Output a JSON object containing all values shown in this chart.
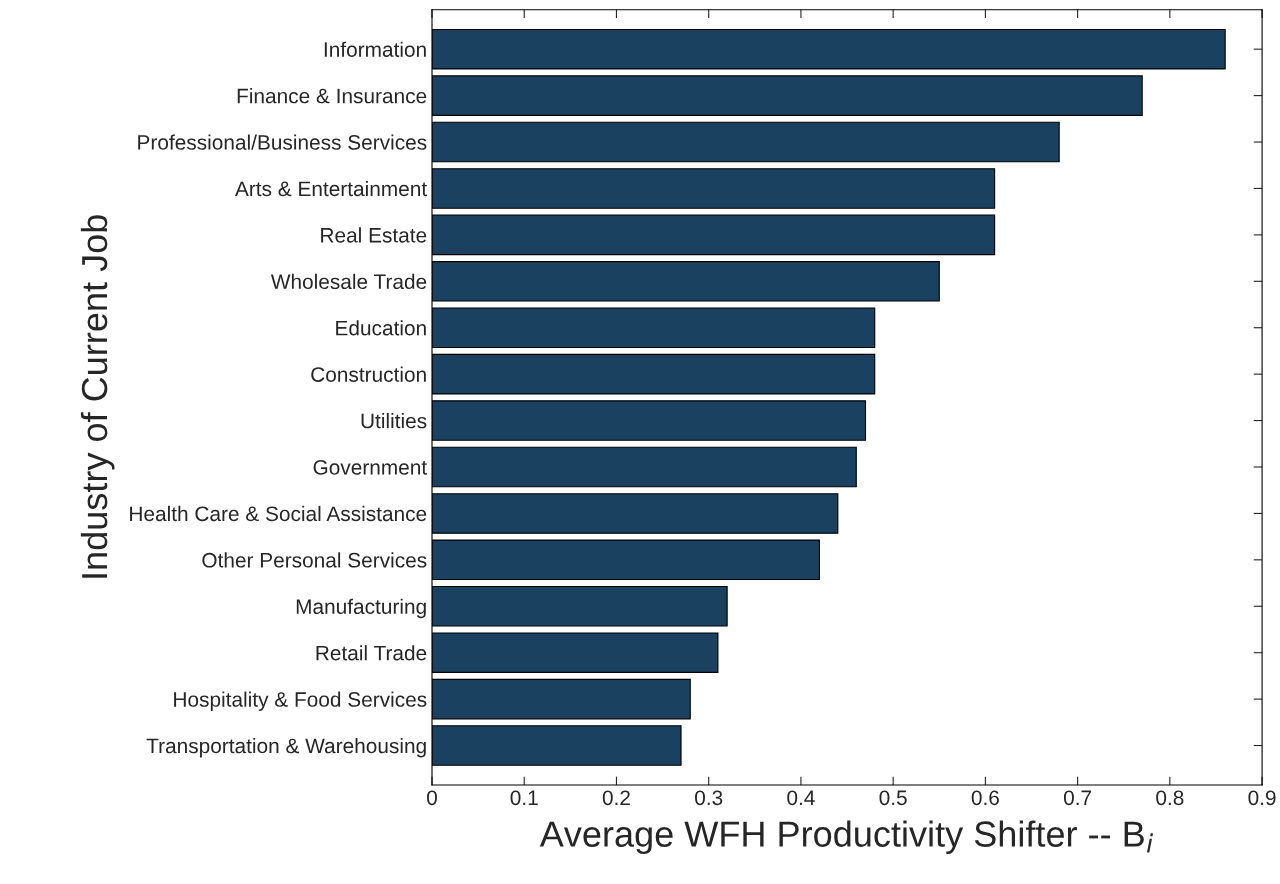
{
  "chart_data": {
    "type": "bar",
    "orientation": "horizontal",
    "categories": [
      "Information",
      "Finance & Insurance",
      "Professional/Business Services",
      "Arts & Entertainment",
      "Real Estate",
      "Wholesale Trade",
      "Education",
      "Construction",
      "Utilities",
      "Government",
      "Health Care & Social Assistance",
      "Other Personal Services",
      "Manufacturing",
      "Retail Trade",
      "Hospitality & Food Services",
      "Transportation & Warehousing"
    ],
    "values": [
      0.86,
      0.77,
      0.68,
      0.61,
      0.61,
      0.55,
      0.48,
      0.48,
      0.47,
      0.46,
      0.44,
      0.42,
      0.32,
      0.31,
      0.28,
      0.27
    ],
    "color": "#1a4260",
    "xlabel": "Average WFH Productivity Shifter -- B$_{i}$",
    "ylabel": "Industry of Current Job",
    "xlim": [
      0,
      0.9
    ],
    "xticks": [
      0,
      0.1,
      0.2,
      0.3,
      0.4,
      0.5,
      0.6,
      0.7,
      0.8,
      0.9
    ],
    "grid": false
  }
}
